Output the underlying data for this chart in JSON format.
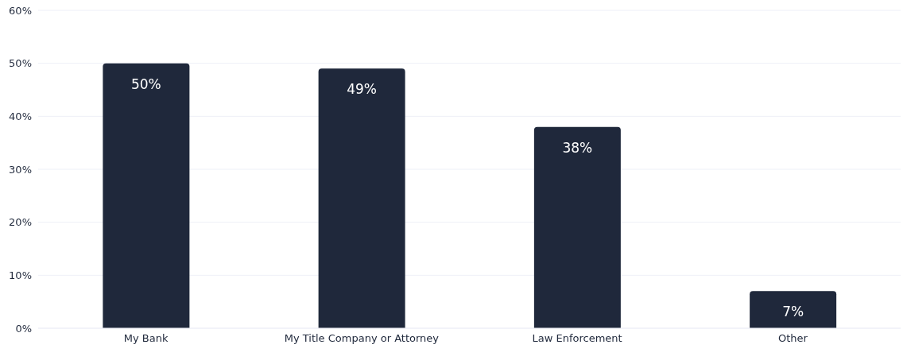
{
  "chart_data": {
    "type": "bar",
    "categories": [
      "My Bank",
      "My Title Company or Attorney",
      "Law Enforcement",
      "Other"
    ],
    "values": [
      50,
      49,
      38,
      7
    ],
    "value_labels": [
      "50%",
      "49%",
      "38%",
      "7%"
    ],
    "color": "#1f283b",
    "ylim": [
      0,
      60
    ],
    "yticks": [
      {
        "value": 0,
        "label": "0%"
      },
      {
        "value": 10,
        "label": "10%"
      },
      {
        "value": 20,
        "label": "20%"
      },
      {
        "value": 30,
        "label": "30%"
      },
      {
        "value": 40,
        "label": "40%"
      },
      {
        "value": 50,
        "label": "50%"
      },
      {
        "value": 60,
        "label": "60%"
      }
    ],
    "grid": "y"
  }
}
